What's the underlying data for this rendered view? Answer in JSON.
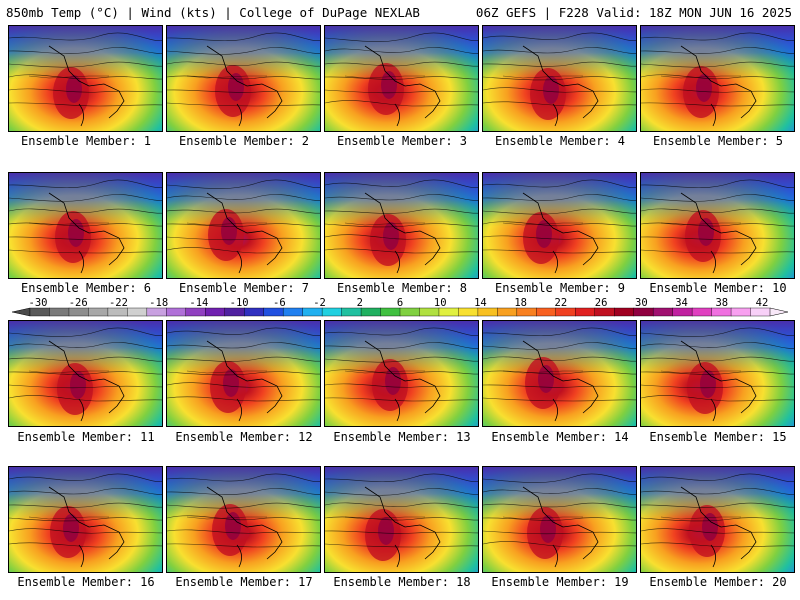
{
  "header": {
    "left": "850mb Temp (°C) | Wind (kts) | College of DuPage NEXLAB",
    "right": "06Z GEFS | F228 Valid: 18Z MON JUN 16 2025"
  },
  "panels": [
    {
      "label": "Ensemble Member: 1"
    },
    {
      "label": "Ensemble Member: 2"
    },
    {
      "label": "Ensemble Member: 3"
    },
    {
      "label": "Ensemble Member: 4"
    },
    {
      "label": "Ensemble Member: 5"
    },
    {
      "label": "Ensemble Member: 6"
    },
    {
      "label": "Ensemble Member: 7"
    },
    {
      "label": "Ensemble Member: 8"
    },
    {
      "label": "Ensemble Member: 9"
    },
    {
      "label": "Ensemble Member: 10"
    },
    {
      "label": "Ensemble Member: 11"
    },
    {
      "label": "Ensemble Member: 12"
    },
    {
      "label": "Ensemble Member: 13"
    },
    {
      "label": "Ensemble Member: 14"
    },
    {
      "label": "Ensemble Member: 15"
    },
    {
      "label": "Ensemble Member: 16"
    },
    {
      "label": "Ensemble Member: 17"
    },
    {
      "label": "Ensemble Member: 18"
    },
    {
      "label": "Ensemble Member: 19"
    },
    {
      "label": "Ensemble Member: 20"
    }
  ],
  "colorbar": {
    "labels": [
      "-30",
      "-26",
      "-22",
      "-18",
      "-14",
      "-10",
      "-6",
      "-2",
      "2",
      "6",
      "10",
      "14",
      "18",
      "22",
      "26",
      "30",
      "34",
      "38",
      "42"
    ],
    "colors": [
      "#5a5a5a",
      "#7a7a7a",
      "#8e8e8e",
      "#a8a8a8",
      "#bcbcbc",
      "#d0d0d0",
      "#c8a0e0",
      "#b070d8",
      "#9040c0",
      "#7020b0",
      "#5020a0",
      "#3030c0",
      "#2050e0",
      "#2080f0",
      "#20b0f0",
      "#20d0e0",
      "#20c0a0",
      "#20b060",
      "#40c040",
      "#80d040",
      "#b0e040",
      "#e0f040",
      "#f8e030",
      "#f8c020",
      "#f8a020",
      "#f88020",
      "#f86020",
      "#f04020",
      "#e02020",
      "#c01020",
      "#a00020",
      "#900040",
      "#a01070",
      "#c020a0",
      "#e040c0",
      "#f070e0",
      "#f8a0f0",
      "#f8d0f8"
    ]
  }
}
